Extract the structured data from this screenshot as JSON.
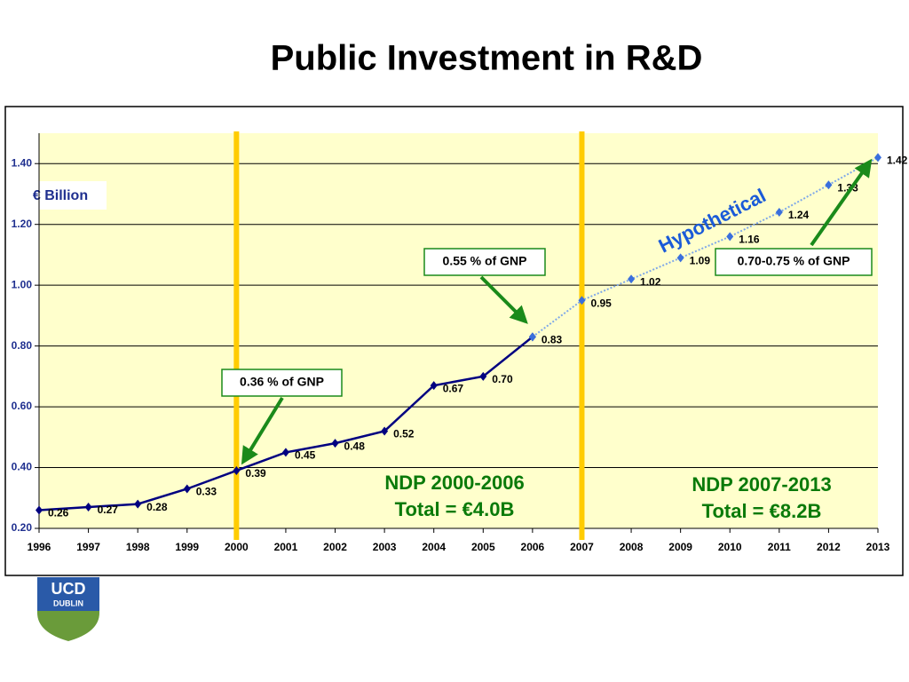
{
  "chart_data": {
    "type": "line",
    "title": "Public Investment in R&D",
    "y_label": "€ Billion",
    "categories": [
      "1996",
      "1997",
      "1998",
      "1999",
      "2000",
      "2001",
      "2002",
      "2003",
      "2004",
      "2005",
      "2006",
      "2007",
      "2008",
      "2009",
      "2010",
      "2011",
      "2012",
      "2013"
    ],
    "series": [
      {
        "color": "#000080",
        "values": [
          0.26,
          0.27,
          0.28,
          0.33,
          0.39,
          0.45,
          0.48,
          0.52,
          0.67,
          0.7,
          0.83,
          null,
          null,
          null,
          null,
          null,
          null,
          null
        ],
        "value_labels": [
          "0.26",
          "0.27",
          "0.28",
          "0.33",
          "0.39",
          "0.45",
          "0.48",
          "0.52",
          "0.67",
          "0.70",
          "0.83",
          null,
          null,
          null,
          null,
          null,
          null,
          null
        ]
      },
      {
        "name": "Hypothetical",
        "color": "#3a6fdc",
        "values": [
          null,
          null,
          null,
          null,
          null,
          null,
          null,
          null,
          null,
          null,
          0.83,
          0.95,
          1.02,
          1.09,
          1.16,
          1.24,
          1.33,
          1.42
        ],
        "value_labels": [
          null,
          null,
          null,
          null,
          null,
          null,
          null,
          null,
          null,
          null,
          null,
          "0.95",
          "1.02",
          "1.09",
          "1.16",
          "1.24",
          "1.33",
          "1.42"
        ]
      }
    ],
    "ylim": [
      0.2,
      1.5
    ],
    "yticks": [
      {
        "value": 0.2,
        "label": "0.20"
      },
      {
        "value": 0.4,
        "label": "0.40"
      },
      {
        "value": 0.6,
        "label": "0.60"
      },
      {
        "value": 0.8,
        "label": "0.80"
      },
      {
        "value": 1.0,
        "label": "1.00"
      },
      {
        "value": 1.2,
        "label": "1.20"
      },
      {
        "value": 1.4,
        "label": "1.40"
      }
    ],
    "grid": true,
    "vertical_lines": [
      "2000",
      "2007"
    ],
    "vertical_line_color": "#ffcc00",
    "annotations": [
      "0.36 % of GNP",
      "0.55 % of GNP",
      "0.70-0.75 % of GNP"
    ],
    "periods": [
      {
        "name": "NDP 2000-2006",
        "total": "Total = €4.0B"
      },
      {
        "name": "NDP 2007-2013",
        "total": "Total = €8.2B"
      }
    ]
  },
  "logo": {
    "line1": "UCD",
    "line2": "DUBLIN"
  }
}
